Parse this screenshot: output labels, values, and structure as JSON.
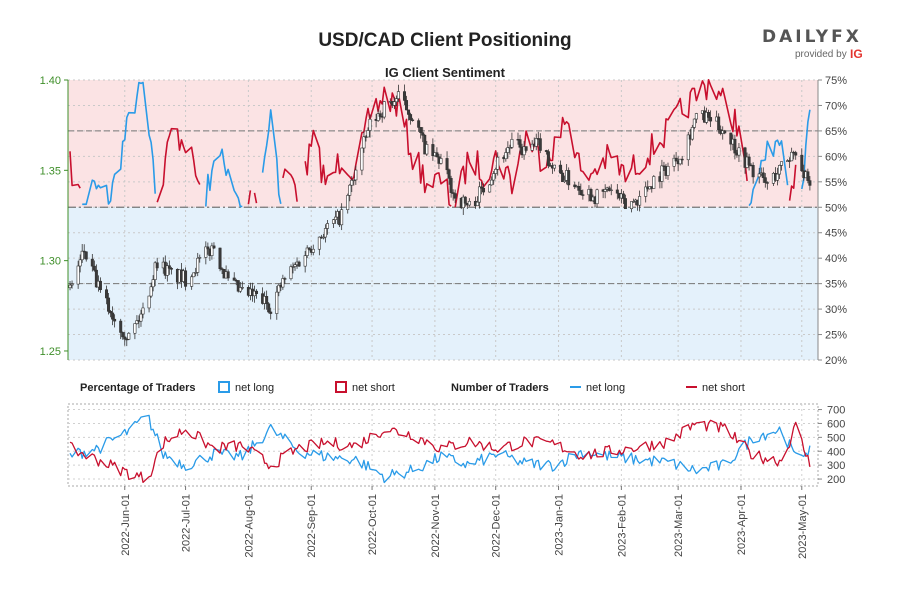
{
  "header": {
    "title": "USD/CAD Client Positioning",
    "subtitle": "IG Client Sentiment"
  },
  "brand": {
    "name": "DAILYFX",
    "provided_by": "provided by",
    "ig": "IG"
  },
  "colors": {
    "net_long": "#2a9be8",
    "net_short": "#c8102e",
    "candle_up": "#3a3a3a",
    "short_zone": "#fbe3e4",
    "long_zone": "#e4f1fb",
    "left_axis": "#3f8f2a"
  },
  "chart_data": [
    {
      "type": "line",
      "name": "price-and-sentiment",
      "price_axis": {
        "ticks": [
          "1.40",
          "1.35",
          "1.30",
          "1.25"
        ],
        "range": [
          1.245,
          1.4
        ]
      },
      "sentiment_axis": {
        "ticks": [
          "75%",
          "70%",
          "65%",
          "60%",
          "55%",
          "50%",
          "45%",
          "40%",
          "35%",
          "30%",
          "25%",
          "20%"
        ],
        "range": [
          20,
          75
        ]
      },
      "reference_lines": [
        50,
        35,
        65
      ],
      "price_keypoints": [
        [
          "2022-05-05",
          1.285
        ],
        [
          "2022-05-12",
          1.305
        ],
        [
          "2022-05-20",
          1.282
        ],
        [
          "2022-05-27",
          1.268
        ],
        [
          "2022-06-03",
          1.258
        ],
        [
          "2022-06-10",
          1.272
        ],
        [
          "2022-06-17",
          1.3
        ],
        [
          "2022-06-24",
          1.292
        ],
        [
          "2022-07-01",
          1.29
        ],
        [
          "2022-07-08",
          1.3
        ],
        [
          "2022-07-15",
          1.308
        ],
        [
          "2022-07-22",
          1.288
        ],
        [
          "2022-07-29",
          1.282
        ],
        [
          "2022-08-05",
          1.28
        ],
        [
          "2022-08-12",
          1.275
        ],
        [
          "2022-08-19",
          1.29
        ],
        [
          "2022-08-26",
          1.3
        ],
        [
          "2022-09-02",
          1.31
        ],
        [
          "2022-09-09",
          1.318
        ],
        [
          "2022-09-16",
          1.325
        ],
        [
          "2022-09-23",
          1.35
        ],
        [
          "2022-09-30",
          1.375
        ],
        [
          "2022-10-07",
          1.385
        ],
        [
          "2022-10-14",
          1.39
        ],
        [
          "2022-10-21",
          1.38
        ],
        [
          "2022-10-28",
          1.36
        ],
        [
          "2022-11-04",
          1.355
        ],
        [
          "2022-11-11",
          1.335
        ],
        [
          "2022-11-18",
          1.33
        ],
        [
          "2022-11-25",
          1.34
        ],
        [
          "2022-12-02",
          1.355
        ],
        [
          "2022-12-09",
          1.365
        ],
        [
          "2022-12-16",
          1.36
        ],
        [
          "2022-12-23",
          1.365
        ],
        [
          "2022-12-30",
          1.35
        ],
        [
          "2023-01-06",
          1.345
        ],
        [
          "2023-01-13",
          1.34
        ],
        [
          "2023-01-20",
          1.335
        ],
        [
          "2023-01-27",
          1.34
        ],
        [
          "2023-02-03",
          1.33
        ],
        [
          "2023-02-10",
          1.335
        ],
        [
          "2023-02-17",
          1.345
        ],
        [
          "2023-02-24",
          1.352
        ],
        [
          "2023-03-03",
          1.36
        ],
        [
          "2023-03-10",
          1.38
        ],
        [
          "2023-03-17",
          1.378
        ],
        [
          "2023-03-24",
          1.372
        ],
        [
          "2023-03-31",
          1.36
        ],
        [
          "2023-04-07",
          1.35
        ],
        [
          "2023-04-14",
          1.342
        ],
        [
          "2023-04-21",
          1.352
        ],
        [
          "2023-04-28",
          1.362
        ],
        [
          "2023-05-05",
          1.338
        ]
      ],
      "net_long_pct_keypoints": [
        [
          "2022-05-05",
          42
        ],
        [
          "2022-05-15",
          54
        ],
        [
          "2022-05-25",
          52
        ],
        [
          "2022-06-05",
          70
        ],
        [
          "2022-06-10",
          74
        ],
        [
          "2022-06-17",
          50
        ],
        [
          "2022-06-24",
          35
        ],
        [
          "2022-07-01",
          37
        ],
        [
          "2022-07-08",
          46
        ],
        [
          "2022-07-15",
          60
        ],
        [
          "2022-07-22",
          58
        ],
        [
          "2022-07-29",
          50
        ],
        [
          "2022-08-05",
          47
        ],
        [
          "2022-08-12",
          68
        ],
        [
          "2022-08-19",
          42
        ],
        [
          "2022-08-26",
          48
        ],
        [
          "2022-09-02",
          37
        ],
        [
          "2022-09-09",
          46
        ],
        [
          "2022-09-16",
          40
        ],
        [
          "2022-09-23",
          43
        ],
        [
          "2022-09-30",
          32
        ],
        [
          "2022-10-07",
          28
        ],
        [
          "2022-10-14",
          30
        ],
        [
          "2022-10-21",
          40
        ],
        [
          "2022-10-28",
          45
        ],
        [
          "2022-11-04",
          45
        ],
        [
          "2022-11-11",
          50
        ],
        [
          "2022-11-18",
          40
        ],
        [
          "2022-11-25",
          43
        ],
        [
          "2022-12-02",
          40
        ],
        [
          "2022-12-09",
          45
        ],
        [
          "2022-12-16",
          36
        ],
        [
          "2022-12-23",
          40
        ],
        [
          "2022-12-30",
          38
        ],
        [
          "2023-01-06",
          32
        ],
        [
          "2023-01-13",
          45
        ],
        [
          "2023-01-20",
          42
        ],
        [
          "2023-01-27",
          40
        ],
        [
          "2023-02-03",
          44
        ],
        [
          "2023-02-10",
          41
        ],
        [
          "2023-02-17",
          38
        ],
        [
          "2023-02-24",
          35
        ],
        [
          "2023-03-03",
          31
        ],
        [
          "2023-03-10",
          28
        ],
        [
          "2023-03-17",
          25
        ],
        [
          "2023-03-24",
          30
        ],
        [
          "2023-03-31",
          34
        ],
        [
          "2023-04-07",
          56
        ],
        [
          "2023-04-14",
          60
        ],
        [
          "2023-04-21",
          66
        ],
        [
          "2023-04-28",
          40
        ],
        [
          "2023-05-04",
          64
        ],
        [
          "2023-05-07",
          74
        ]
      ]
    },
    {
      "type": "line",
      "name": "number-of-traders",
      "y_ticks": [
        "700",
        "600",
        "500",
        "400",
        "300",
        "200"
      ],
      "y_range": [
        150,
        740
      ],
      "series": [
        {
          "name": "net long",
          "keypoints": [
            [
              "2022-05-05",
              370
            ],
            [
              "2022-05-20",
              430
            ],
            [
              "2022-06-05",
              560
            ],
            [
              "2022-06-12",
              660
            ],
            [
              "2022-06-20",
              380
            ],
            [
              "2022-07-01",
              300
            ],
            [
              "2022-07-15",
              380
            ],
            [
              "2022-07-29",
              360
            ],
            [
              "2022-08-12",
              560
            ],
            [
              "2022-08-26",
              400
            ],
            [
              "2022-09-09",
              360
            ],
            [
              "2022-09-23",
              340
            ],
            [
              "2022-10-07",
              220
            ],
            [
              "2022-10-21",
              260
            ],
            [
              "2022-11-04",
              360
            ],
            [
              "2022-11-18",
              300
            ],
            [
              "2022-12-02",
              380
            ],
            [
              "2022-12-16",
              310
            ],
            [
              "2022-12-30",
              300
            ],
            [
              "2023-01-13",
              400
            ],
            [
              "2023-01-27",
              360
            ],
            [
              "2023-02-10",
              340
            ],
            [
              "2023-02-24",
              320
            ],
            [
              "2023-03-10",
              260
            ],
            [
              "2023-03-24",
              300
            ],
            [
              "2023-04-07",
              500
            ],
            [
              "2023-04-21",
              560
            ],
            [
              "2023-04-28",
              350
            ],
            [
              "2023-05-05",
              420
            ],
            [
              "2023-05-07",
              640
            ]
          ]
        },
        {
          "name": "net short",
          "keypoints": [
            [
              "2022-05-05",
              420
            ],
            [
              "2022-05-20",
              330
            ],
            [
              "2022-06-05",
              230
            ],
            [
              "2022-06-12",
              200
            ],
            [
              "2022-06-20",
              460
            ],
            [
              "2022-07-01",
              560
            ],
            [
              "2022-07-15",
              420
            ],
            [
              "2022-07-29",
              440
            ],
            [
              "2022-08-12",
              300
            ],
            [
              "2022-08-26",
              420
            ],
            [
              "2022-09-09",
              460
            ],
            [
              "2022-09-23",
              440
            ],
            [
              "2022-10-07",
              560
            ],
            [
              "2022-10-21",
              520
            ],
            [
              "2022-11-04",
              420
            ],
            [
              "2022-11-18",
              470
            ],
            [
              "2022-12-02",
              420
            ],
            [
              "2022-12-16",
              470
            ],
            [
              "2022-12-30",
              450
            ],
            [
              "2023-01-13",
              370
            ],
            [
              "2023-01-27",
              400
            ],
            [
              "2023-02-10",
              430
            ],
            [
              "2023-02-24",
              470
            ],
            [
              "2023-03-10",
              600
            ],
            [
              "2023-03-24",
              560
            ],
            [
              "2023-04-07",
              370
            ],
            [
              "2023-04-21",
              330
            ],
            [
              "2023-04-28",
              580
            ],
            [
              "2023-05-05",
              300
            ],
            [
              "2023-05-07",
              230
            ]
          ]
        }
      ]
    }
  ],
  "x_axis": {
    "date_range": [
      "2022-05-04",
      "2023-05-09"
    ],
    "ticks": [
      {
        "label": "2022-Jun-01",
        "date": "2022-06-01"
      },
      {
        "label": "2022-Jul-01",
        "date": "2022-07-01"
      },
      {
        "label": "2022-Aug-01",
        "date": "2022-08-01"
      },
      {
        "label": "2022-Sep-01",
        "date": "2022-09-01"
      },
      {
        "label": "2022-Oct-01",
        "date": "2022-10-01"
      },
      {
        "label": "2022-Nov-01",
        "date": "2022-11-01"
      },
      {
        "label": "2022-Dec-01",
        "date": "2022-12-01"
      },
      {
        "label": "2023-Jan-01",
        "date": "2023-01-01"
      },
      {
        "label": "2023-Feb-01",
        "date": "2023-02-01"
      },
      {
        "label": "2023-Mar-01",
        "date": "2023-03-01"
      },
      {
        "label": "2023-Apr-01",
        "date": "2023-04-01"
      },
      {
        "label": "2023-May-01",
        "date": "2023-05-01"
      }
    ]
  },
  "legend": {
    "pct_heading": "Percentage of Traders",
    "pct_long": "net long",
    "pct_short": "net short",
    "num_heading": "Number of Traders",
    "num_long": "net long",
    "num_short": "net short"
  }
}
